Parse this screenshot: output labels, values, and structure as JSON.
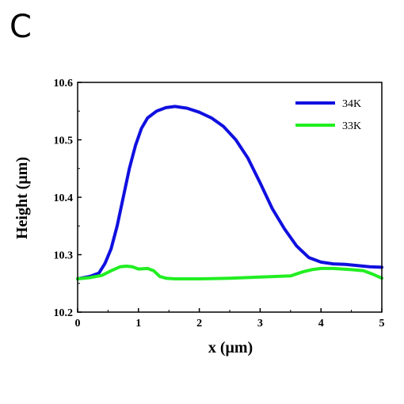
{
  "panel_label": "C",
  "chart_data": {
    "type": "line",
    "title": "",
    "xlabel": "x (μm)",
    "ylabel": "Height (μm)",
    "xlim": [
      0,
      5
    ],
    "ylim": [
      10.2,
      10.6
    ],
    "xticks": [
      "0",
      "1",
      "2",
      "3",
      "4",
      "5"
    ],
    "yticks": [
      "10.2",
      "10.3",
      "10.4",
      "10.5",
      "10.6"
    ],
    "grid": false,
    "legend_position": "top-right",
    "series": [
      {
        "name": "34K",
        "color": "#1010e0",
        "x": [
          0,
          0.2,
          0.35,
          0.45,
          0.55,
          0.65,
          0.75,
          0.85,
          0.95,
          1.05,
          1.15,
          1.3,
          1.45,
          1.6,
          1.8,
          2.0,
          2.2,
          2.4,
          2.6,
          2.8,
          3.0,
          3.2,
          3.4,
          3.6,
          3.8,
          4.0,
          4.2,
          4.4,
          4.6,
          4.8,
          5.0
        ],
        "y": [
          10.258,
          10.262,
          10.268,
          10.285,
          10.31,
          10.35,
          10.4,
          10.45,
          10.49,
          10.52,
          10.538,
          10.55,
          10.556,
          10.558,
          10.555,
          10.548,
          10.538,
          10.523,
          10.5,
          10.468,
          10.425,
          10.38,
          10.345,
          10.315,
          10.295,
          10.287,
          10.284,
          10.283,
          10.281,
          10.279,
          10.278
        ]
      },
      {
        "name": "33K",
        "color": "#22ee22",
        "x": [
          0,
          0.2,
          0.4,
          0.55,
          0.7,
          0.8,
          0.9,
          1.0,
          1.15,
          1.25,
          1.35,
          1.45,
          1.6,
          2.0,
          2.5,
          3.0,
          3.5,
          3.7,
          3.85,
          4.0,
          4.2,
          4.5,
          4.7,
          4.85,
          5.0
        ],
        "y": [
          10.258,
          10.26,
          10.264,
          10.272,
          10.279,
          10.28,
          10.279,
          10.275,
          10.276,
          10.272,
          10.262,
          10.259,
          10.258,
          10.258,
          10.259,
          10.261,
          10.263,
          10.27,
          10.274,
          10.276,
          10.276,
          10.274,
          10.272,
          10.266,
          10.259
        ]
      }
    ]
  }
}
